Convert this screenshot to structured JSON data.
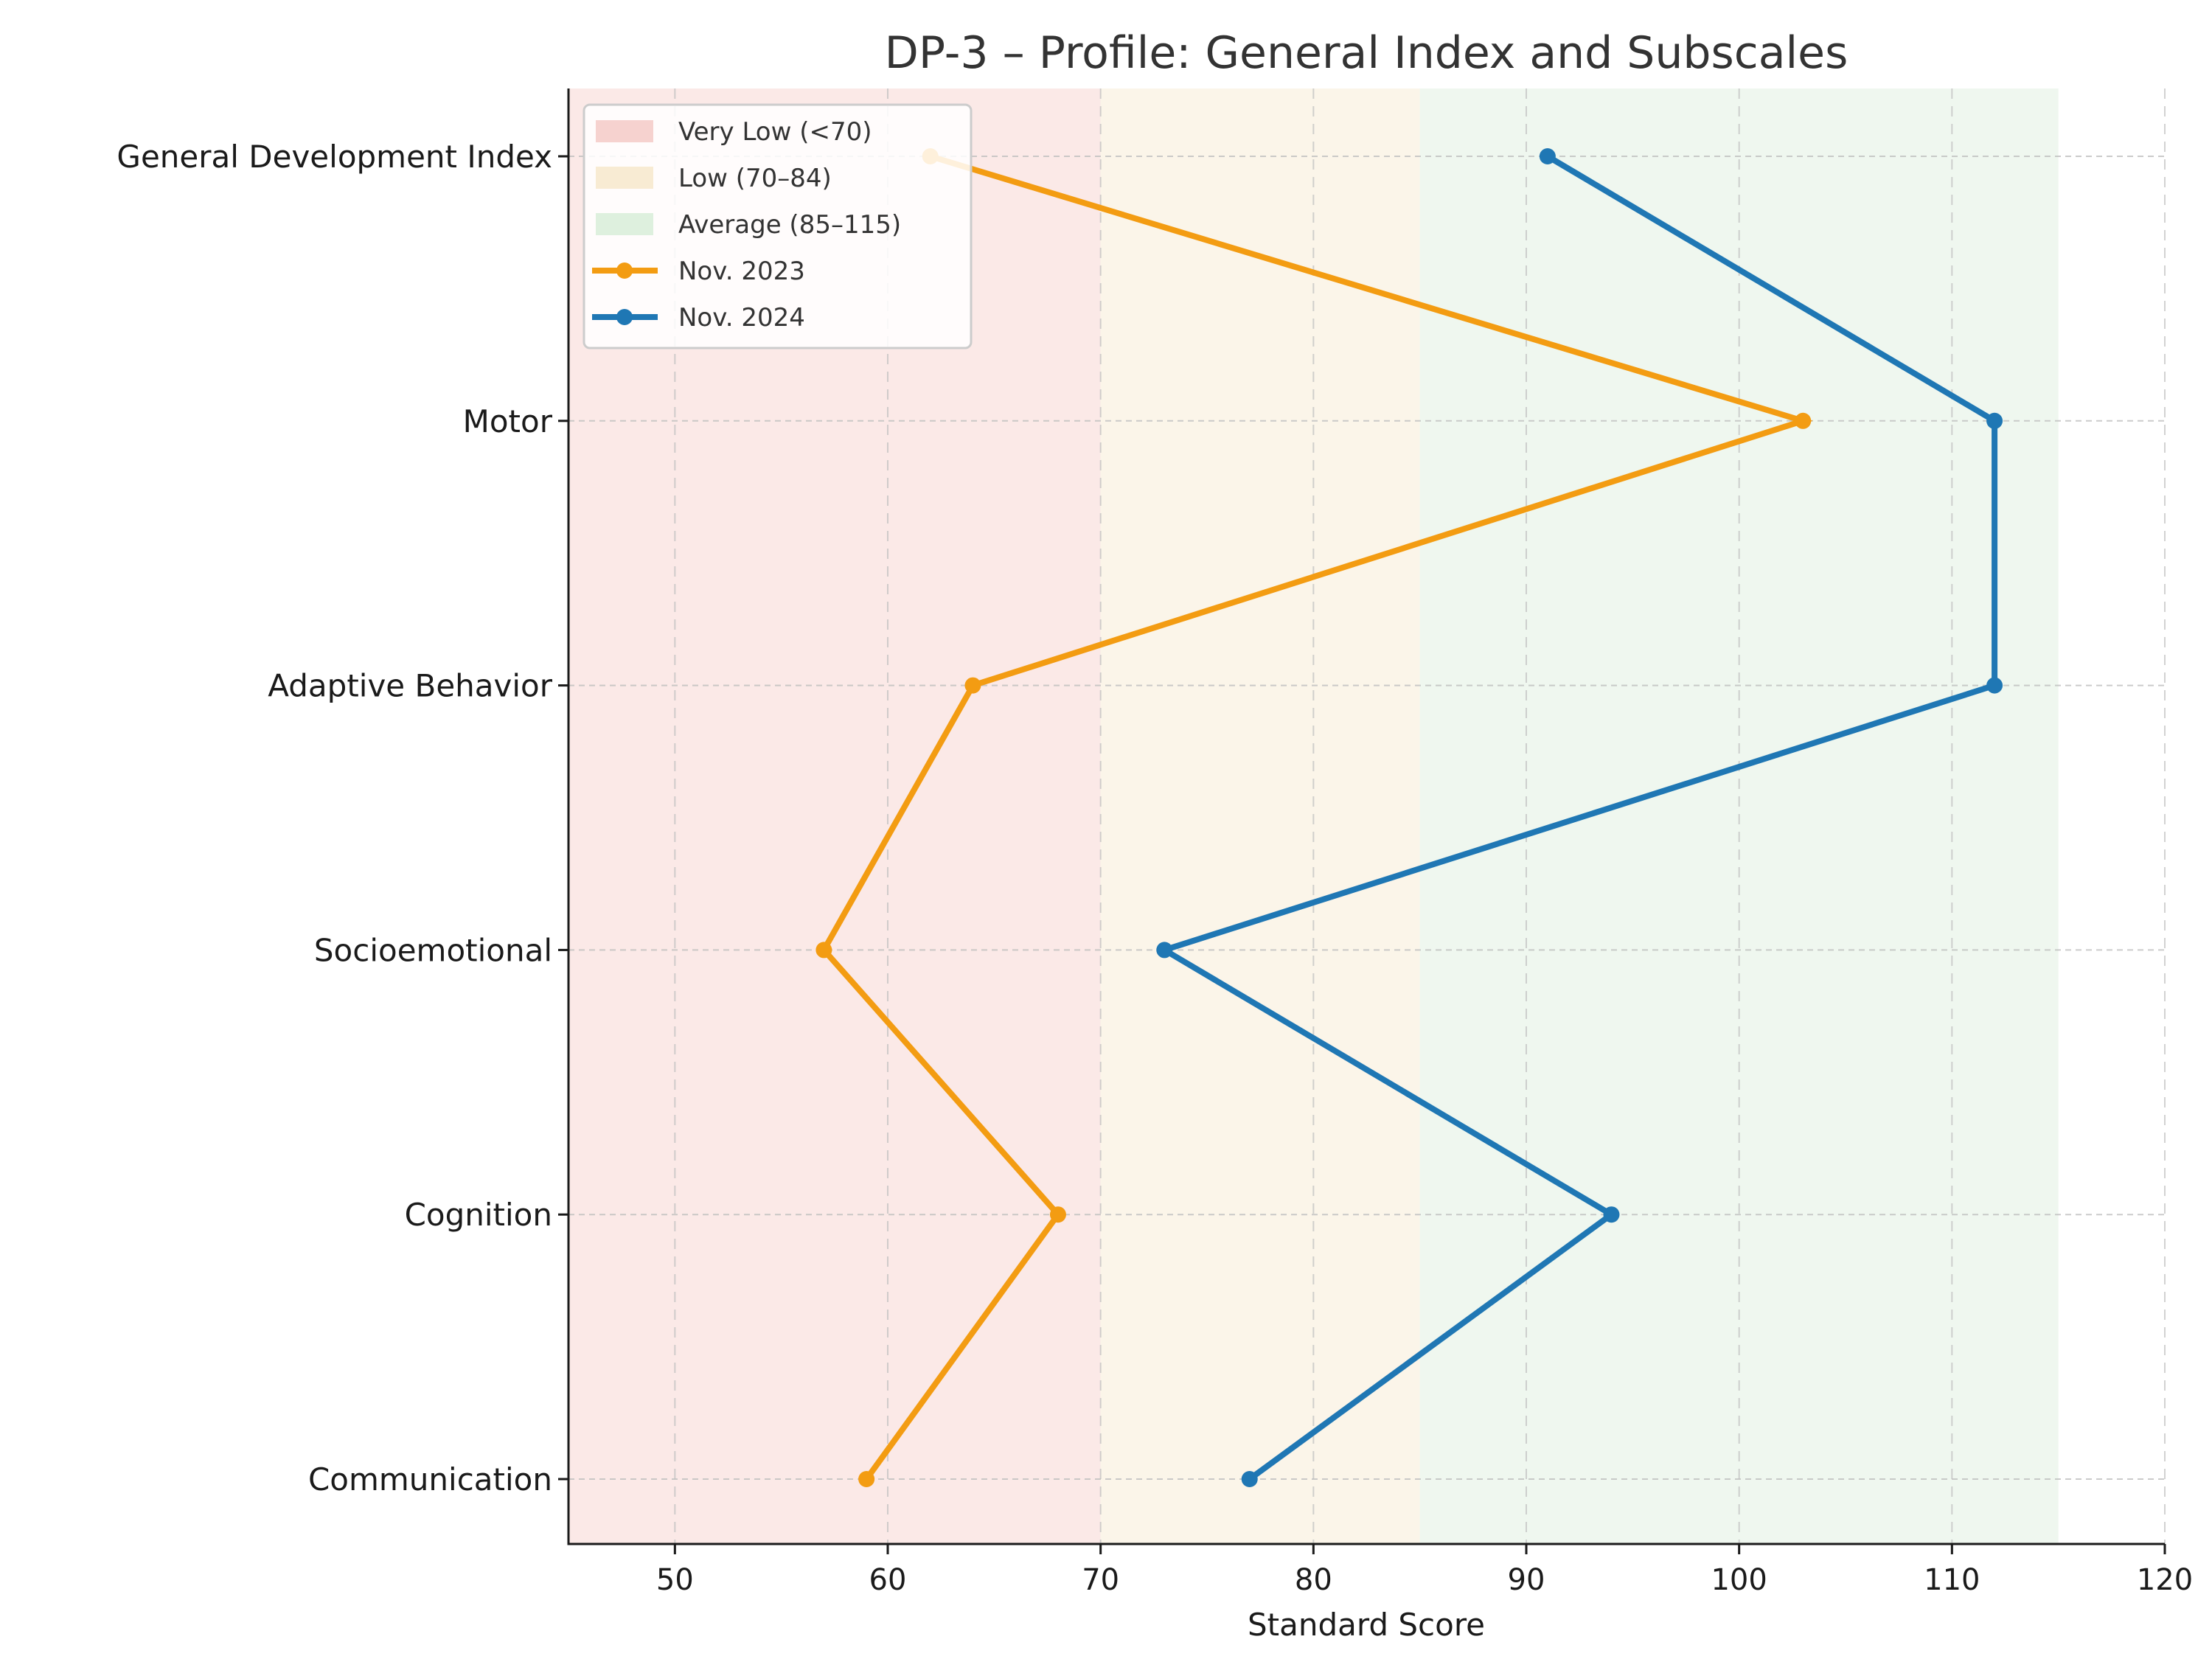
{
  "chart_data": {
    "type": "line",
    "title": "DP-3 – Profile: General Index and Subscales",
    "xlabel": "Standard Score",
    "ylabel": "",
    "xlim": [
      45,
      120
    ],
    "xticks": [
      50,
      60,
      70,
      80,
      90,
      100,
      110,
      120
    ],
    "xtick_labels": [
      "50",
      "60",
      "70",
      "80",
      "90",
      "100",
      "110",
      "120"
    ],
    "categories": [
      "General Development Index",
      "Motor",
      "Adaptive Behavior",
      "Socioemotional",
      "Cognition",
      "Communication"
    ],
    "grid": true,
    "legend_position": "top-left",
    "bands": [
      {
        "label": "Very Low (<70)",
        "from": 45,
        "to": 70,
        "color": "#f4c7c3"
      },
      {
        "label": "Low (70–84)",
        "from": 70,
        "to": 85,
        "color": "#f6e6c8"
      },
      {
        "label": "Average (85–115)",
        "from": 85,
        "to": 115,
        "color": "#d6ecd6"
      }
    ],
    "series": [
      {
        "name": "Nov. 2023",
        "color": "#f39c12",
        "values": [
          62,
          103,
          64,
          57,
          68,
          59
        ]
      },
      {
        "name": "Nov. 2024",
        "color": "#1f77b4",
        "values": [
          91,
          112,
          112,
          73,
          94,
          77
        ]
      }
    ]
  }
}
